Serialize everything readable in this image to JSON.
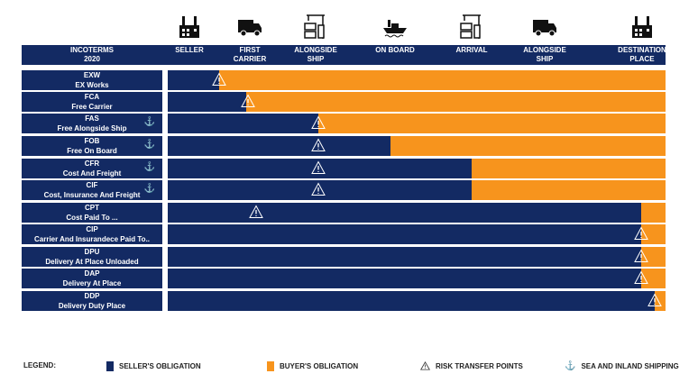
{
  "colors": {
    "seller": "#132a63",
    "buyer": "#f7941d"
  },
  "header": {
    "title": "INCOTERMS\n2020",
    "columns": [
      {
        "label": "SELLER",
        "icon": "factory-icon"
      },
      {
        "label": "FIRST\nCARRIER",
        "icon": "truck-icon"
      },
      {
        "label": "ALONGSIDE\nSHIP",
        "icon": "port-crane-icon"
      },
      {
        "label": "ON BOARD",
        "icon": "ship-icon"
      },
      {
        "label": "ARRIVAL",
        "icon": "port-crane-icon"
      },
      {
        "label": "ALONGSIDE\nSHIP",
        "icon": "truck-icon"
      },
      {
        "label": "DESTINATION\nPLACE",
        "icon": "factory-icon"
      }
    ]
  },
  "rows": [
    {
      "code": "EXW",
      "name": "EX Works",
      "sea": false,
      "seller_pct": 10.3,
      "risk_pct": 10.3
    },
    {
      "code": "FCA",
      "name": "Free Carrier",
      "sea": false,
      "seller_pct": 15.8,
      "risk_pct": 16.1
    },
    {
      "code": "FAS",
      "name": "Free Alongside Ship",
      "sea": true,
      "seller_pct": 30.3,
      "risk_pct": 30.3
    },
    {
      "code": "FOB",
      "name": "Free On Board",
      "sea": true,
      "seller_pct": 44.7,
      "risk_pct": 30.3
    },
    {
      "code": "CFR",
      "name": "Cost And Freight",
      "sea": true,
      "seller_pct": 61.1,
      "risk_pct": 30.3
    },
    {
      "code": "CIF",
      "name": "Cost, Insurance And Freight",
      "sea": true,
      "seller_pct": 61.1,
      "risk_pct": 30.3
    },
    {
      "code": "CPT",
      "name": "Cost Paid To ...",
      "sea": false,
      "seller_pct": 95.1,
      "risk_pct": 17.8
    },
    {
      "code": "CIP",
      "name": "Carrier And Insurandece Paid To..",
      "sea": false,
      "seller_pct": 95.1,
      "risk_pct": 95.1
    },
    {
      "code": "DPU",
      "name": "Delivery At Place Unloaded",
      "sea": false,
      "seller_pct": 95.1,
      "risk_pct": 95.1
    },
    {
      "code": "DAP",
      "name": "Delivery At Place",
      "sea": false,
      "seller_pct": 95.1,
      "risk_pct": 95.1
    },
    {
      "code": "DDP",
      "name": "Delivery Duty Place",
      "sea": false,
      "seller_pct": 97.8,
      "risk_pct": 97.8
    }
  ],
  "legend": {
    "title": "LEGEND:",
    "seller": "SELLER'S OBLIGATION",
    "buyer": "BUYER'S OBLIGATION",
    "risk": "RISK TRANSFER POINTS",
    "sea": "SEA AND INLAND SHIPPING"
  }
}
